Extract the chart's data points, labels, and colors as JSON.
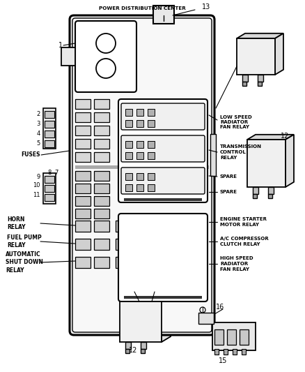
{
  "bg_color": "#ffffff",
  "line_color": "#000000",
  "fig_width": 4.38,
  "fig_height": 5.33,
  "dpi": 100,
  "labels": {
    "top_label": "POWER DISTRIBUTION CENTER",
    "item1": "1",
    "item2": "2",
    "item3": "3",
    "item4": "4",
    "item5": "5",
    "fuses": "FUSES",
    "item7": "7",
    "item8": "8",
    "item9": "9",
    "item10": "10",
    "item11": "11",
    "item12": "12",
    "item13": "13",
    "item15": "15",
    "item16": "16",
    "horn_relay": "HORN\nRELAY",
    "fuel_pump_relay": "FUEL PUMP\nRELAY",
    "auto_shutdown": "AUTOMATIC\nSHUT DOWN\nRELAY",
    "low_speed_fan": "LOW SPEED\nRADIATOR\nFAN RELAY",
    "trans_control": "TRANSMISSION\nCONTROL\nRELAY",
    "spare1": "SPARE",
    "spare2": "SPARE",
    "engine_starter": "ENGINE STARTER\nMOTOR RELAY",
    "ac_compressor": "A/C COMPRESSOR\nCLUTCH RELAY",
    "high_speed_fan": "HIGH SPEED\nRADIATOR\nFAN RELAY"
  }
}
